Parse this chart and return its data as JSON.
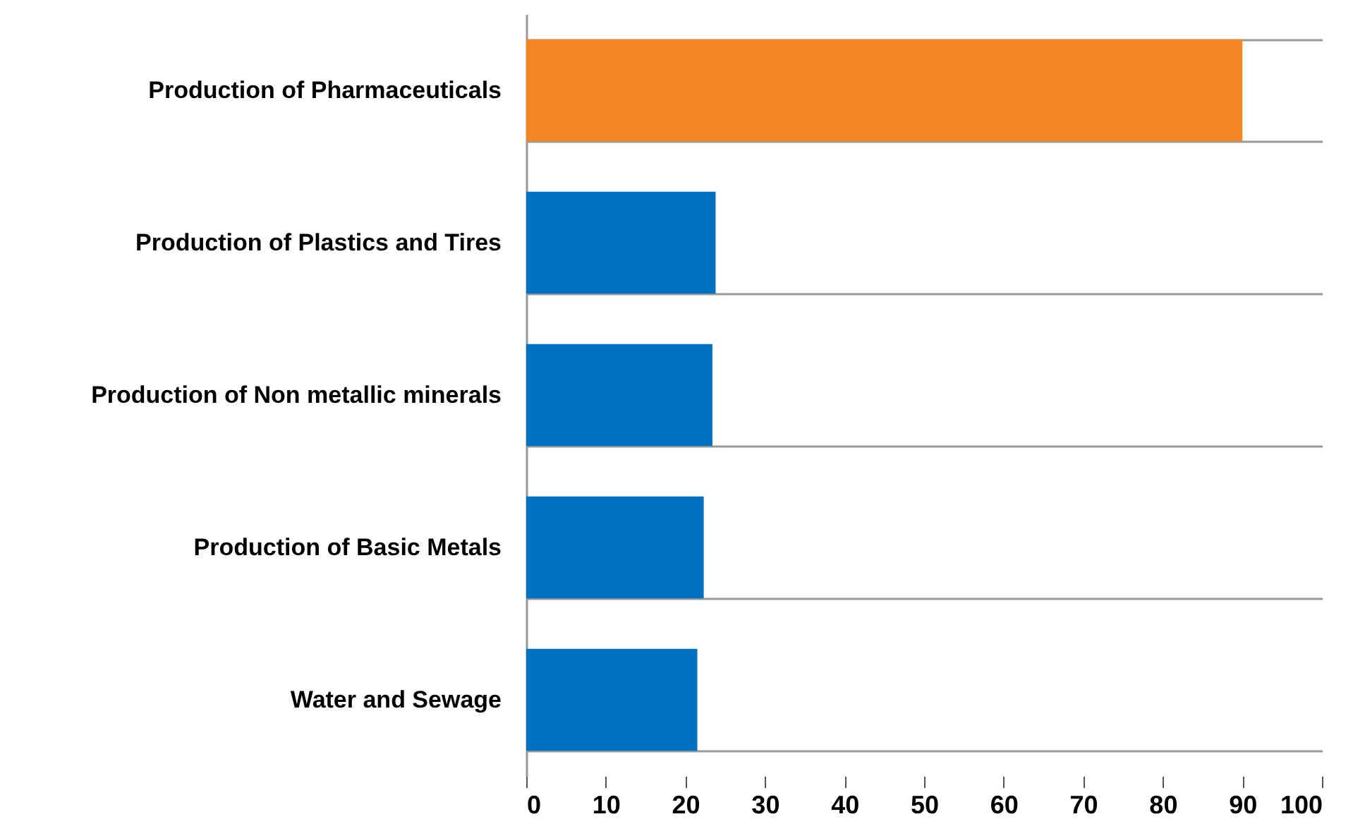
{
  "chart_data": {
    "type": "bar",
    "orientation": "horizontal",
    "categories": [
      "Production of Pharmaceuticals",
      "Production of Plastics and Tires",
      "Production of Non metallic minerals",
      "Production of Basic Metals",
      "Water and Sewage"
    ],
    "values": [
      90,
      23.8,
      23.4,
      22.3,
      21.5
    ],
    "colors": [
      "#f28524",
      "#0070c0",
      "#0070c0",
      "#0070c0",
      "#0070c0"
    ],
    "xlim": [
      0,
      100
    ],
    "xticks": [
      0,
      10,
      20,
      30,
      40,
      50,
      60,
      70,
      80,
      90,
      100
    ],
    "grid": "y"
  }
}
